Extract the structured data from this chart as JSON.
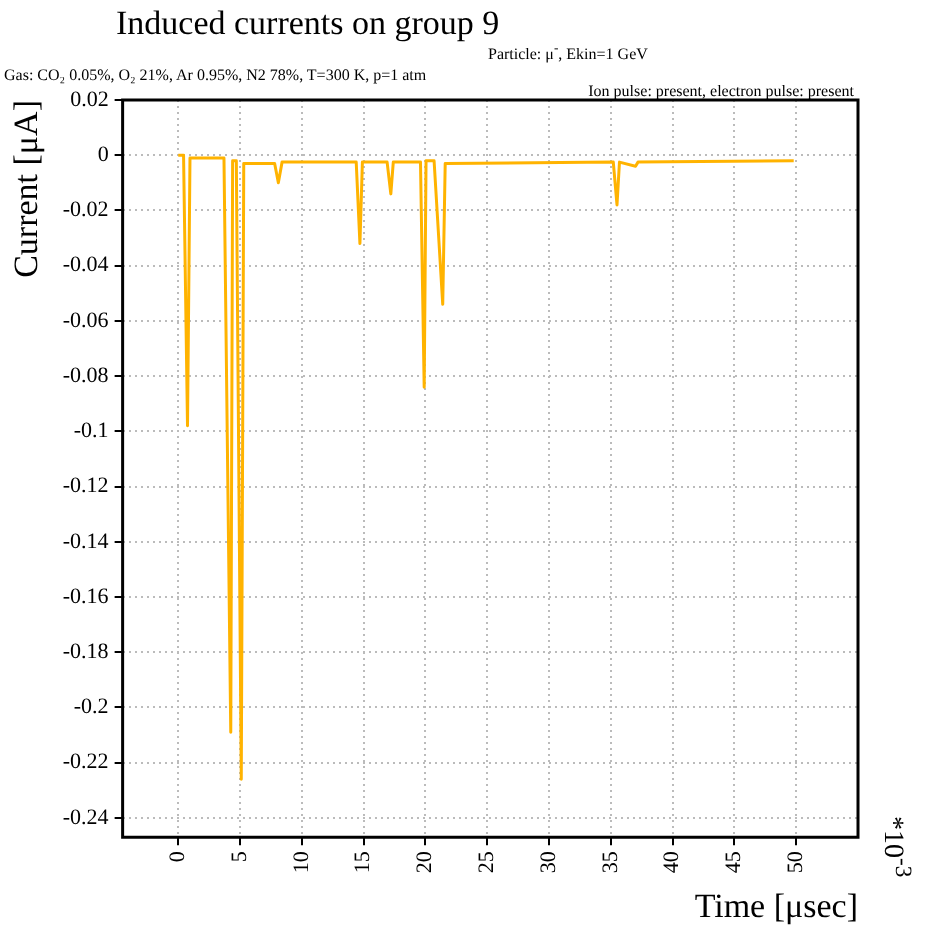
{
  "chart_data": {
    "type": "line",
    "title": "Induced currents on group 9",
    "subtitle": "Particle: μ$^{-}$, Ekin=1 GeV",
    "annotations": [
      "Gas: CO₂ 0.05%, O₂ 21%, Ar 0.95%, N2 78%, T=300 K, p=1 atm",
      "Ion pulse: present, electron pulse: present",
      "*10$^{-3}$"
    ],
    "xlabel": "Time [μsec]",
    "ylabel": "Current [μA]",
    "series": [
      {
        "color": "#ffb300",
        "x": [
          0,
          0.43,
          0.75,
          0.95,
          3.7,
          4.25,
          4.4,
          4.7,
          5.1,
          5.3,
          7.8,
          8.1,
          8.4,
          14.4,
          14.7,
          14.9,
          16.9,
          17.2,
          17.4,
          19.6,
          19.9,
          20.05,
          20.7,
          21.4,
          21.6,
          35.2,
          35.5,
          35.7,
          37,
          37.2,
          49.8
        ],
        "values": [
          0,
          0,
          -0.098,
          -0.001,
          -0.001,
          -0.209,
          -0.002,
          -0.002,
          -0.226,
          -0.003,
          -0.003,
          -0.01,
          -0.0025,
          -0.0025,
          -0.032,
          -0.0025,
          -0.0025,
          -0.014,
          -0.0025,
          -0.0025,
          -0.084,
          -0.002,
          -0.002,
          -0.054,
          -0.003,
          -0.0025,
          -0.018,
          -0.0025,
          -0.004,
          -0.0025,
          -0.002
        ]
      }
    ],
    "xlim": [
      -4.5,
      55
    ],
    "xticks": [
      0,
      5,
      10,
      15,
      20,
      25,
      30,
      35,
      40,
      45,
      50
    ],
    "ylim": [
      -0.247,
      0.02
    ],
    "yticks": [
      0.02,
      0,
      -0.02,
      -0.04,
      -0.06,
      -0.08,
      -0.1,
      -0.12,
      -0.14,
      -0.16,
      -0.18,
      -0.2,
      -0.22,
      -0.24
    ],
    "grid": true,
    "legend": false,
    "marker": "none",
    "line_style": "solid"
  }
}
